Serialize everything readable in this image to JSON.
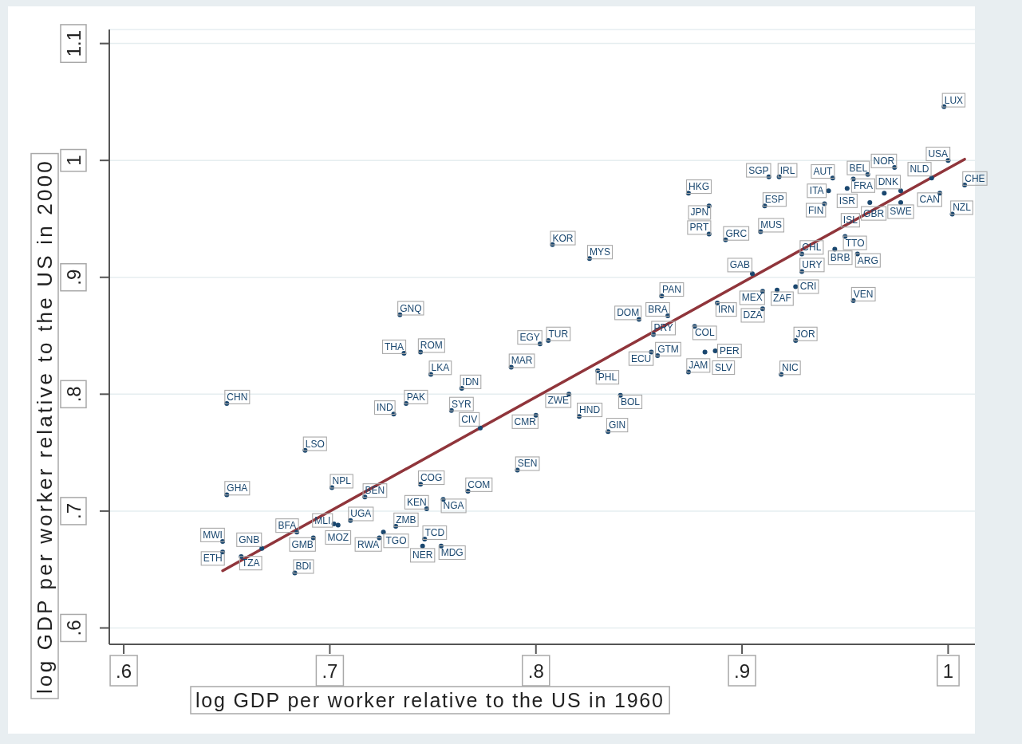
{
  "chart_data": {
    "type": "scatter",
    "xlabel": "log GDP per worker relative to the US in 1960",
    "ylabel": "log GDP per worker relative to the US in 2000",
    "xlim": [
      0.593,
      1.013
    ],
    "ylim": [
      0.586,
      1.112
    ],
    "xticks": [
      {
        "value": 0.6,
        "label": ".6"
      },
      {
        "value": 0.7,
        "label": ".7"
      },
      {
        "value": 0.8,
        "label": ".8"
      },
      {
        "value": 0.9,
        "label": ".9"
      },
      1
    ],
    "yticks": [
      {
        "value": 0.6,
        "label": ".6"
      },
      {
        "value": 0.7,
        "label": ".7"
      },
      {
        "value": 0.8,
        "label": ".8"
      },
      {
        "value": 0.9,
        "label": ".9"
      },
      1,
      1.1
    ],
    "grid": "y",
    "series": [
      {
        "color": "#1a476f",
        "marker": "circle",
        "x": [
          0.998,
          1.0,
          0.974,
          0.961,
          0.944,
          0.954,
          0.992,
          1.008,
          0.942,
          0.951,
          0.969,
          0.977,
          0.996,
          0.94,
          0.962,
          0.977,
          1.002,
          0.913,
          0.918,
          0.874,
          0.884,
          0.911,
          0.884,
          0.892,
          0.909,
          0.95,
          0.945,
          0.956,
          0.929,
          0.929,
          0.905,
          0.91,
          0.917,
          0.926,
          0.91,
          0.954,
          0.926,
          0.919,
          0.888,
          0.861,
          0.864,
          0.85,
          0.877,
          0.857,
          0.856,
          0.859,
          0.882,
          0.887,
          0.874,
          0.808,
          0.826,
          0.802,
          0.806,
          0.83,
          0.841,
          0.816,
          0.8,
          0.821,
          0.835,
          0.788,
          0.734,
          0.736,
          0.744,
          0.749,
          0.764,
          0.737,
          0.731,
          0.759,
          0.773,
          0.791,
          0.744,
          0.767,
          0.755,
          0.747,
          0.65,
          0.688,
          0.65,
          0.701,
          0.717,
          0.702,
          0.704,
          0.71,
          0.684,
          0.692,
          0.683,
          0.648,
          0.648,
          0.657,
          0.667,
          0.732,
          0.726,
          0.724,
          0.746,
          0.745,
          0.754
        ],
        "values": [
          1.046,
          1.0,
          0.994,
          0.988,
          0.985,
          0.984,
          0.985,
          0.979,
          0.974,
          0.976,
          0.972,
          0.974,
          0.972,
          0.963,
          0.964,
          0.964,
          0.954,
          0.986,
          0.986,
          0.972,
          0.961,
          0.961,
          0.937,
          0.932,
          0.939,
          0.935,
          0.924,
          0.92,
          0.92,
          0.905,
          0.903,
          0.888,
          0.889,
          0.892,
          0.873,
          0.88,
          0.846,
          0.817,
          0.878,
          0.884,
          0.867,
          0.864,
          0.858,
          0.851,
          0.836,
          0.833,
          0.836,
          0.837,
          0.819,
          0.928,
          0.916,
          0.843,
          0.846,
          0.82,
          0.799,
          0.8,
          0.782,
          0.781,
          0.768,
          0.823,
          0.868,
          0.835,
          0.836,
          0.817,
          0.805,
          0.792,
          0.783,
          0.786,
          0.771,
          0.735,
          0.723,
          0.717,
          0.71,
          0.702,
          0.792,
          0.752,
          0.714,
          0.72,
          0.712,
          0.689,
          0.688,
          0.692,
          0.682,
          0.677,
          0.647,
          0.674,
          0.665,
          0.661,
          0.668,
          0.687,
          0.682,
          0.677,
          0.676,
          0.67,
          0.67
        ],
        "value_labels": [
          "LUX",
          "USA",
          "NOR",
          "BEL",
          "AUT",
          "FRA",
          "NLD",
          "CHE",
          "ITA",
          "ISR",
          "GBR",
          "DNK",
          "CAN",
          "FIN",
          "ISL",
          "SWE",
          "NZL",
          "SGP",
          "IRL",
          "HKG",
          "JPN",
          "ESP",
          "PRT",
          "GRC",
          "MUS",
          "TTO",
          "BRB",
          "ARG",
          "CHL",
          "URY",
          "GAB",
          "MEX",
          "ZAF",
          "CRI",
          "DZA",
          "VEN",
          "JOR",
          "NIC",
          "IRN",
          "PAN",
          "BRA",
          "DOM",
          "COL",
          "PRY",
          "ECU",
          "GTM",
          "SLV",
          "PER",
          "JAM",
          "KOR",
          "MYS",
          "EGY",
          "TUR",
          "PHL",
          "BOL",
          "ZWE",
          "CMR",
          "HND",
          "GIN",
          "MAR",
          "GNQ",
          "THA",
          "ROM",
          "LKA",
          "IDN",
          "PAK",
          "IND",
          "SYR",
          "CIV",
          "SEN",
          "COG",
          "COM",
          "NGA",
          "KEN",
          "CHN",
          "LSO",
          "GHA",
          "NPL",
          "BEN",
          "MLI",
          "MOZ",
          "UGA",
          "BFA",
          "GMB",
          "BDI",
          "MWI",
          "ETH",
          "TZA",
          "GNB",
          "ZMB",
          "TGO",
          "RWA",
          "TCD",
          "NER",
          "MDG"
        ]
      },
      {
        "type": "line",
        "color": "#90353b",
        "x": [
          0.648,
          1.008
        ],
        "values": [
          0.649,
          1.001
        ]
      }
    ]
  }
}
